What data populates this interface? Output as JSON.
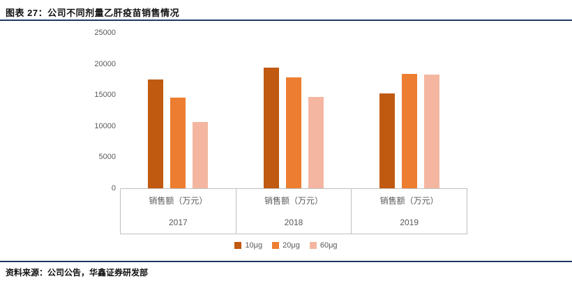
{
  "header": {
    "title": "图表 27：公司不同剂量乙肝疫苗销售情况"
  },
  "footer": {
    "source": "资料来源：公司公告，华鑫证券研发部"
  },
  "colors": {
    "accent_line": "#1F3864",
    "axis_gray": "#BFBFBF",
    "text_gray": "#595959"
  },
  "chart_data": {
    "type": "bar",
    "title": "公司不同剂量乙肝疫苗销售情况",
    "categories": [
      "2017",
      "2018",
      "2019"
    ],
    "category_axis_label": "销售额（万元）",
    "series": [
      {
        "name": "10μg",
        "color": "#C05A11",
        "values": [
          17500,
          19400,
          15200
        ]
      },
      {
        "name": "20μg",
        "color": "#ED7D31",
        "values": [
          14600,
          17800,
          18400
        ]
      },
      {
        "name": "60μg",
        "color": "#F4B6A0",
        "values": [
          10600,
          14700,
          18300
        ]
      }
    ],
    "ylim": [
      0,
      25000
    ],
    "yticks": [
      0,
      5000,
      10000,
      15000,
      20000,
      25000
    ],
    "grid": false,
    "legend_position": "bottom"
  }
}
